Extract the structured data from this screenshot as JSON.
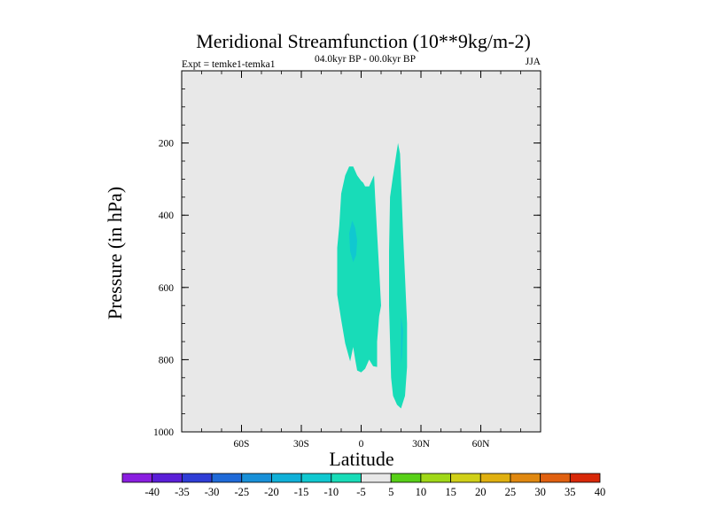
{
  "chart_data": {
    "type": "filled-contour",
    "title": "Meridional Streamfunction (10**9kg/m-2)",
    "subtitle_left": "Expt = temke1-temka1",
    "subtitle_center": "04.0kyr BP - 00.0kyr BP",
    "subtitle_right": "JJA",
    "xlabel": "Latitude",
    "ylabel": "Pressure (in hPa)",
    "xlim": [
      -90,
      90
    ],
    "ylim": [
      0,
      1000
    ],
    "x_ticks": [
      {
        "value": -60,
        "label": "60S"
      },
      {
        "value": -30,
        "label": "30S"
      },
      {
        "value": 0,
        "label": "0"
      },
      {
        "value": 30,
        "label": "30N"
      },
      {
        "value": 60,
        "label": "60N"
      }
    ],
    "y_ticks": [
      {
        "value": 200,
        "label": "200"
      },
      {
        "value": 400,
        "label": "400"
      },
      {
        "value": 600,
        "label": "600"
      },
      {
        "value": 800,
        "label": "800"
      },
      {
        "value": 1000,
        "label": "1000"
      }
    ],
    "background_color": "#e8e8e8",
    "colorbar": {
      "labels": [
        "-40",
        "-35",
        "-30",
        "-25",
        "-20",
        "-15",
        "-10",
        "-5",
        "5",
        "10",
        "15",
        "20",
        "25",
        "30",
        "35",
        "40"
      ],
      "colors": [
        "#8a1ee0",
        "#5b1fd8",
        "#2f3dd6",
        "#1f6ad8",
        "#1890d8",
        "#10b0d8",
        "#10c8d0",
        "#18dcb8",
        "#e8e8e8",
        "#58d018",
        "#a0d818",
        "#d0d018",
        "#e0b010",
        "#e08810",
        "#e06010",
        "#d82808"
      ]
    },
    "regions": [
      {
        "name": "contour-region-a",
        "level": "-5 to -10",
        "color": "#18dcb8",
        "points": [
          [
            -12,
            490
          ],
          [
            -11,
            430
          ],
          [
            -10,
            340
          ],
          [
            -8,
            290
          ],
          [
            -6,
            265
          ],
          [
            -4,
            265
          ],
          [
            -2,
            290
          ],
          [
            0,
            305
          ],
          [
            1,
            310
          ],
          [
            2,
            320
          ],
          [
            4,
            320
          ],
          [
            6,
            295
          ],
          [
            6.5,
            290
          ],
          [
            7,
            350
          ],
          [
            8,
            450
          ],
          [
            9,
            550
          ],
          [
            10,
            650
          ],
          [
            9,
            680
          ],
          [
            8,
            750
          ],
          [
            8,
            820
          ],
          [
            6,
            818
          ],
          [
            4,
            800
          ],
          [
            2,
            825
          ],
          [
            0,
            835
          ],
          [
            -2,
            830
          ],
          [
            -3,
            800
          ],
          [
            -4,
            765
          ],
          [
            -5.5,
            805
          ],
          [
            -8,
            755
          ],
          [
            -10,
            690
          ],
          [
            -12,
            620
          ]
        ]
      },
      {
        "name": "contour-region-b",
        "level": "-5 to -10",
        "color": "#18dcb8",
        "points": [
          [
            14.5,
            350
          ],
          [
            16,
            290
          ],
          [
            17.5,
            235
          ],
          [
            18.5,
            200
          ],
          [
            19.5,
            230
          ],
          [
            20,
            300
          ],
          [
            21,
            450
          ],
          [
            22,
            570
          ],
          [
            23,
            700
          ],
          [
            23,
            820
          ],
          [
            22,
            900
          ],
          [
            20,
            935
          ],
          [
            18,
            925
          ],
          [
            16,
            900
          ],
          [
            15,
            850
          ],
          [
            14.5,
            750
          ],
          [
            14,
            650
          ],
          [
            14,
            500
          ]
        ]
      },
      {
        "name": "contour-region-c",
        "level": "-10 to -15",
        "color": "#10c8d0",
        "points": [
          [
            -6,
            450
          ],
          [
            -4.5,
            415
          ],
          [
            -3,
            435
          ],
          [
            -2,
            470
          ],
          [
            -2.5,
            510
          ],
          [
            -4,
            530
          ],
          [
            -5.5,
            500
          ]
        ]
      },
      {
        "name": "contour-region-d",
        "level": "-10 to -15",
        "color": "#10c8d0",
        "points": [
          [
            20,
            680
          ],
          [
            21,
            720
          ],
          [
            20.5,
            790
          ],
          [
            20,
            810
          ]
        ]
      }
    ]
  }
}
